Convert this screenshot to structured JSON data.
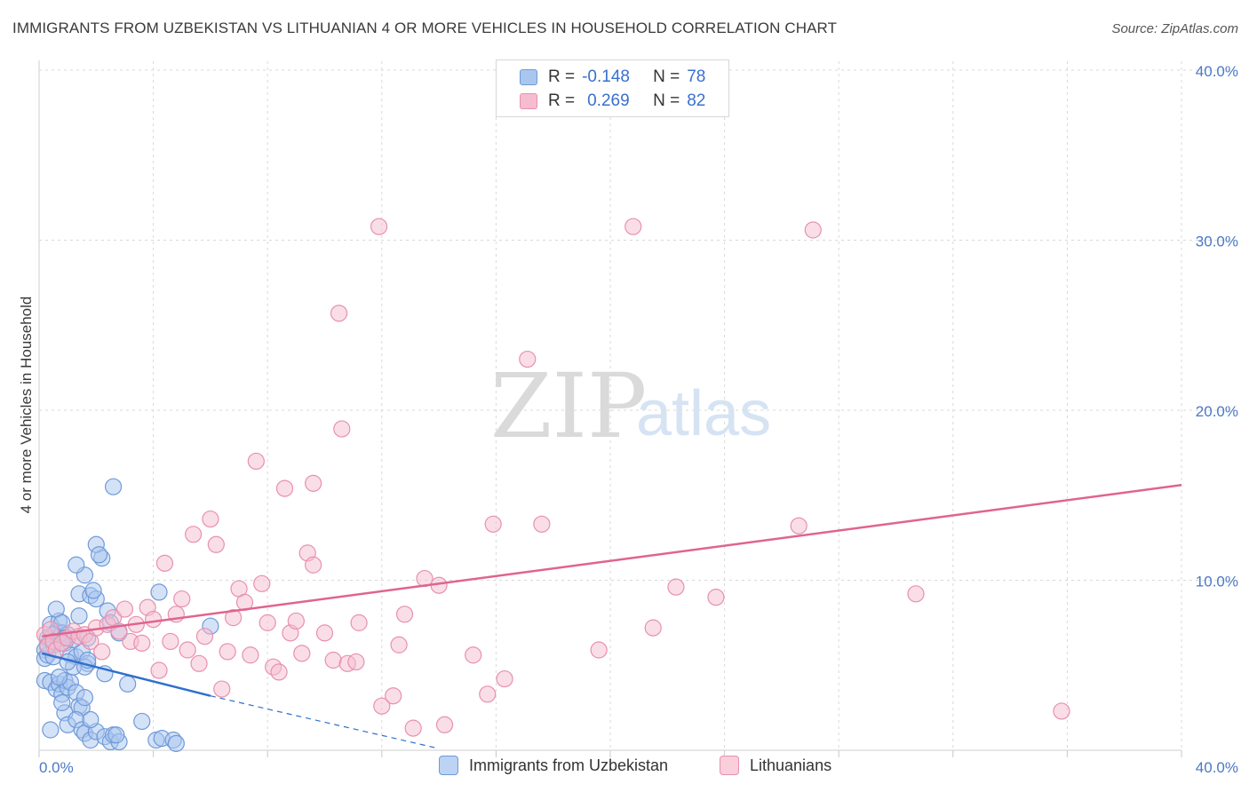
{
  "title": "IMMIGRANTS FROM UZBEKISTAN VS LITHUANIAN 4 OR MORE VEHICLES IN HOUSEHOLD CORRELATION CHART",
  "source": "Source: ZipAtlas.com",
  "watermark": {
    "zip": "ZIP",
    "atlas": "atlas"
  },
  "legend": {
    "rows": [
      {
        "r_label": "R =",
        "r_value": "-0.148",
        "n_label": "N =",
        "n_value": "78"
      },
      {
        "r_label": "R =",
        "r_value": "0.269",
        "n_label": "N =",
        "n_value": "82"
      }
    ]
  },
  "colors": {
    "blue_fill": "#a9c6ef",
    "blue_stroke": "#6f9ad8",
    "blue_line": "#2f6fce",
    "pink_fill": "#f6bdd0",
    "pink_stroke": "#e890ae",
    "pink_line": "#e0648e",
    "grid": "#d8d8d8",
    "tick_text": "#4a78c6"
  },
  "chart_data": {
    "type": "scatter",
    "title": "IMMIGRANTS FROM UZBEKISTAN VS LITHUANIAN 4 OR MORE VEHICLES IN HOUSEHOLD CORRELATION CHART",
    "xlabel": "",
    "ylabel": "4 or more Vehicles in Household",
    "xlim": [
      0,
      40
    ],
    "ylim": [
      0,
      40
    ],
    "x_tick_labels": [
      "0.0%",
      "40.0%"
    ],
    "y_ticks": [
      10,
      20,
      30,
      40
    ],
    "y_tick_labels": [
      "10.0%",
      "20.0%",
      "30.0%",
      "40.0%"
    ],
    "grid": true,
    "legend_position": "top-center",
    "series": [
      {
        "name": "Immigrants from Uzbekistan",
        "color": "#a9c6ef",
        "r": -0.148,
        "n": 78,
        "trend": {
          "x_start": 0.1,
          "y_start": 5.7,
          "x_solid_end": 6.0,
          "y_solid_end": 3.2,
          "x_dashed_end": 14.0,
          "y_dashed_end": 0.1
        },
        "points": [
          [
            0.2,
            5.9
          ],
          [
            0.3,
            6.6
          ],
          [
            0.4,
            7.4
          ],
          [
            0.5,
            6.2
          ],
          [
            0.6,
            7.0
          ],
          [
            0.7,
            7.6
          ],
          [
            0.8,
            6.9
          ],
          [
            0.9,
            6.3
          ],
          [
            1.0,
            6.8
          ],
          [
            0.2,
            5.4
          ],
          [
            0.3,
            5.6
          ],
          [
            0.5,
            5.5
          ],
          [
            0.6,
            8.3
          ],
          [
            0.8,
            7.5
          ],
          [
            1.1,
            5.6
          ],
          [
            1.3,
            5.5
          ],
          [
            1.5,
            5.8
          ],
          [
            1.7,
            5.1
          ],
          [
            0.2,
            4.1
          ],
          [
            0.4,
            4.0
          ],
          [
            0.6,
            3.6
          ],
          [
            0.7,
            3.9
          ],
          [
            0.8,
            3.3
          ],
          [
            0.9,
            4.1
          ],
          [
            1.0,
            3.7
          ],
          [
            1.1,
            4.0
          ],
          [
            1.2,
            4.9
          ],
          [
            1.3,
            3.4
          ],
          [
            1.4,
            2.6
          ],
          [
            1.5,
            2.5
          ],
          [
            1.6,
            3.1
          ],
          [
            0.9,
            2.2
          ],
          [
            1.0,
            1.5
          ],
          [
            0.8,
            2.8
          ],
          [
            1.3,
            1.8
          ],
          [
            1.5,
            1.2
          ],
          [
            1.6,
            1.0
          ],
          [
            1.8,
            0.6
          ],
          [
            2.0,
            1.1
          ],
          [
            2.3,
            0.8
          ],
          [
            2.5,
            0.5
          ],
          [
            2.6,
            0.9
          ],
          [
            2.8,
            0.5
          ],
          [
            0.4,
            1.2
          ],
          [
            1.8,
            1.8
          ],
          [
            1.4,
            9.2
          ],
          [
            1.6,
            10.3
          ],
          [
            1.3,
            10.9
          ],
          [
            1.8,
            9.1
          ],
          [
            2.0,
            8.9
          ],
          [
            1.9,
            9.4
          ],
          [
            1.4,
            7.9
          ],
          [
            2.2,
            11.3
          ],
          [
            2.0,
            12.1
          ],
          [
            2.1,
            11.5
          ],
          [
            2.4,
            8.2
          ],
          [
            2.5,
            7.5
          ],
          [
            2.8,
            6.9
          ],
          [
            1.6,
            4.9
          ],
          [
            1.7,
            5.3
          ],
          [
            2.3,
            4.5
          ],
          [
            3.1,
            3.9
          ],
          [
            3.6,
            1.7
          ],
          [
            4.1,
            0.6
          ],
          [
            4.3,
            0.7
          ],
          [
            4.7,
            0.6
          ],
          [
            4.8,
            0.4
          ],
          [
            4.2,
            9.3
          ],
          [
            6.0,
            7.3
          ],
          [
            2.6,
            15.5
          ],
          [
            0.3,
            6.2
          ],
          [
            0.5,
            6.8
          ],
          [
            0.7,
            4.3
          ],
          [
            1.0,
            5.2
          ],
          [
            2.7,
            0.9
          ],
          [
            1.2,
            6.5
          ],
          [
            0.9,
            6.6
          ],
          [
            1.7,
            6.6
          ]
        ]
      },
      {
        "name": "Lithuanians",
        "color": "#f6bdd0",
        "r": 0.269,
        "n": 82,
        "trend": {
          "x_start": 0.1,
          "y_start": 6.7,
          "x_end": 40,
          "y_end": 15.6
        },
        "points": [
          [
            0.2,
            6.8
          ],
          [
            0.3,
            6.1
          ],
          [
            0.4,
            7.1
          ],
          [
            0.5,
            6.4
          ],
          [
            0.6,
            5.9
          ],
          [
            0.8,
            6.3
          ],
          [
            1.0,
            6.6
          ],
          [
            1.2,
            7.0
          ],
          [
            1.4,
            6.7
          ],
          [
            1.6,
            6.8
          ],
          [
            1.8,
            6.4
          ],
          [
            2.0,
            7.2
          ],
          [
            2.2,
            5.8
          ],
          [
            2.4,
            7.4
          ],
          [
            2.6,
            7.8
          ],
          [
            2.8,
            7.0
          ],
          [
            3.0,
            8.3
          ],
          [
            3.2,
            6.4
          ],
          [
            3.4,
            7.4
          ],
          [
            3.6,
            6.3
          ],
          [
            3.8,
            8.4
          ],
          [
            4.0,
            7.7
          ],
          [
            4.2,
            4.7
          ],
          [
            4.4,
            11.0
          ],
          [
            4.6,
            6.4
          ],
          [
            4.8,
            8.0
          ],
          [
            5.0,
            8.9
          ],
          [
            5.2,
            5.9
          ],
          [
            5.4,
            12.7
          ],
          [
            5.6,
            5.1
          ],
          [
            5.8,
            6.7
          ],
          [
            6.0,
            13.6
          ],
          [
            6.2,
            12.1
          ],
          [
            6.4,
            3.6
          ],
          [
            6.6,
            5.8
          ],
          [
            6.8,
            7.8
          ],
          [
            7.0,
            9.5
          ],
          [
            7.2,
            8.7
          ],
          [
            7.4,
            5.6
          ],
          [
            7.6,
            17.0
          ],
          [
            7.8,
            9.8
          ],
          [
            8.0,
            7.5
          ],
          [
            8.2,
            4.9
          ],
          [
            8.4,
            4.6
          ],
          [
            8.6,
            15.4
          ],
          [
            8.8,
            6.9
          ],
          [
            9.0,
            7.6
          ],
          [
            9.2,
            5.7
          ],
          [
            9.4,
            11.6
          ],
          [
            9.6,
            15.7
          ],
          [
            9.6,
            10.9
          ],
          [
            10.0,
            6.9
          ],
          [
            10.3,
            5.3
          ],
          [
            10.5,
            25.7
          ],
          [
            10.6,
            18.9
          ],
          [
            10.8,
            5.1
          ],
          [
            11.1,
            5.2
          ],
          [
            11.2,
            7.5
          ],
          [
            11.9,
            30.8
          ],
          [
            12.0,
            2.6
          ],
          [
            12.4,
            3.2
          ],
          [
            12.6,
            6.2
          ],
          [
            12.8,
            8.0
          ],
          [
            13.5,
            10.1
          ],
          [
            14.0,
            9.7
          ],
          [
            14.2,
            1.5
          ],
          [
            15.2,
            5.6
          ],
          [
            15.7,
            3.3
          ],
          [
            15.9,
            13.3
          ],
          [
            16.3,
            4.2
          ],
          [
            17.1,
            23.0
          ],
          [
            17.6,
            13.3
          ],
          [
            19.6,
            5.9
          ],
          [
            20.8,
            30.8
          ],
          [
            21.5,
            7.2
          ],
          [
            22.3,
            9.6
          ],
          [
            23.7,
            9.0
          ],
          [
            26.6,
            13.2
          ],
          [
            27.1,
            30.6
          ],
          [
            30.7,
            9.2
          ],
          [
            35.8,
            2.3
          ],
          [
            13.1,
            1.3
          ]
        ]
      }
    ]
  }
}
